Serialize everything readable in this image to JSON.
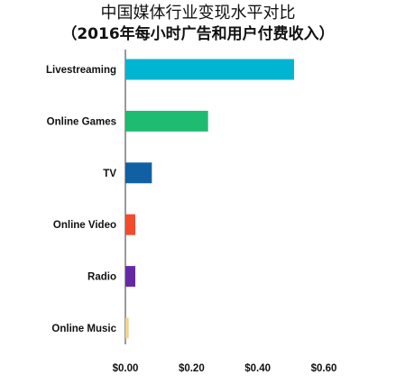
{
  "chart_data": {
    "type": "bar",
    "orientation": "horizontal",
    "title": "中国媒体行业变现水平对比",
    "subtitle": "（2016年每小时广告和用户付费收入）",
    "categories": [
      "Livestreaming",
      "Online Games",
      "TV",
      "Online Video",
      "Radio",
      "Online Music"
    ],
    "values": [
      0.51,
      0.25,
      0.08,
      0.03,
      0.03,
      0.01
    ],
    "colors": [
      "#00b5d1",
      "#1ebc70",
      "#1160a3",
      "#f24b2e",
      "#6629a6",
      "#f4d28c"
    ],
    "x_ticks": [
      "$0.00",
      "$0.20",
      "$0.40",
      "$0.60"
    ],
    "x_tick_values": [
      0,
      0.2,
      0.4,
      0.6
    ],
    "xlim": [
      0,
      0.6
    ],
    "xlabel": "",
    "ylabel": "",
    "grid": false,
    "legend": "none"
  }
}
